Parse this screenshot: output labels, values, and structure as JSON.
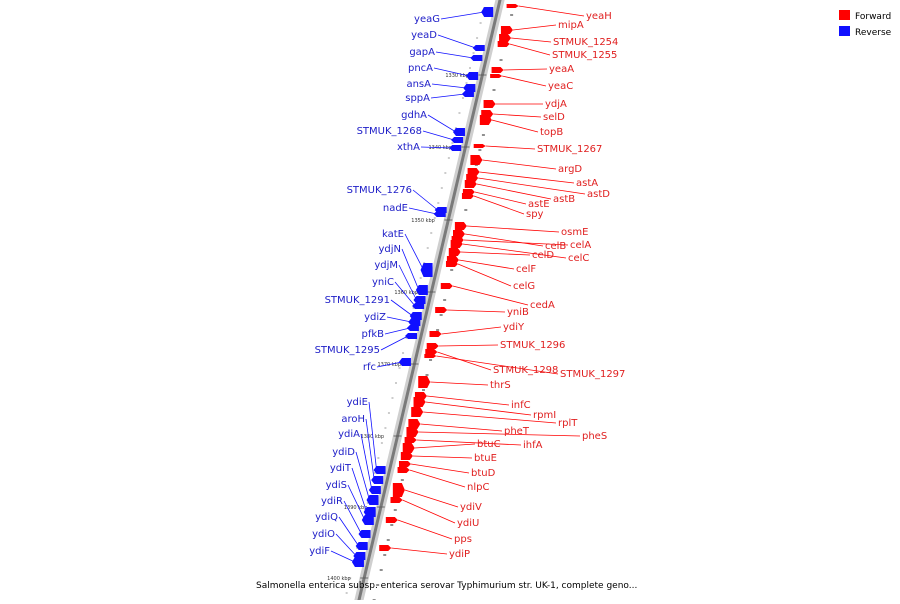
{
  "legend": {
    "forward": {
      "label": "Forward",
      "color": "#ff0000"
    },
    "reverse": {
      "label": "Reverse",
      "color": "#1010ff"
    }
  },
  "footer_title": "Salmonella enterica subsp. enterica serovar Typhimurium str. UK-1, complete geno...",
  "tick_labels": [
    "1330 kbp",
    "1340 kbp",
    "1350 kbp",
    "1360 kbp",
    "1370 kbp",
    "1380 kbp",
    "1390 kbp",
    "1400 kbp"
  ],
  "genes_reverse": [
    "yeaG",
    "yeaD",
    "gapA",
    "pncA",
    "ansA",
    "sppA",
    "gdhA",
    "STMUK_1268",
    "xthA",
    "STMUK_1276",
    "nadE",
    "katE",
    "ydjN",
    "ydjM",
    "yniC",
    "STMUK_1291",
    "ydiZ",
    "pfkB",
    "STMUK_1295",
    "rfc",
    "ydiE",
    "aroH",
    "ydiA",
    "ydiD",
    "ydiT",
    "ydiS",
    "ydiR",
    "ydiQ",
    "ydiO",
    "ydiF"
  ],
  "genes_forward": [
    "yeaH",
    "mipA",
    "STMUK_1254",
    "STMUK_1255",
    "yeaA",
    "yeaC",
    "ydjA",
    "selD",
    "topB",
    "STMUK_1267",
    "argD",
    "astA",
    "astD",
    "astB",
    "astE",
    "spy",
    "osmE",
    "celB",
    "celA",
    "celC",
    "celD",
    "celF",
    "celG",
    "cedA",
    "yniB",
    "ydiY",
    "STMUK_1296",
    "STMUK_1298",
    "STMUK_1297",
    "thrS",
    "infC",
    "rpmI",
    "rplT",
    "pheT",
    "pheS",
    "ihfA",
    "btuC",
    "btuE",
    "btuD",
    "nlpC",
    "ydiV",
    "ydiU",
    "pps",
    "ydiP"
  ]
}
